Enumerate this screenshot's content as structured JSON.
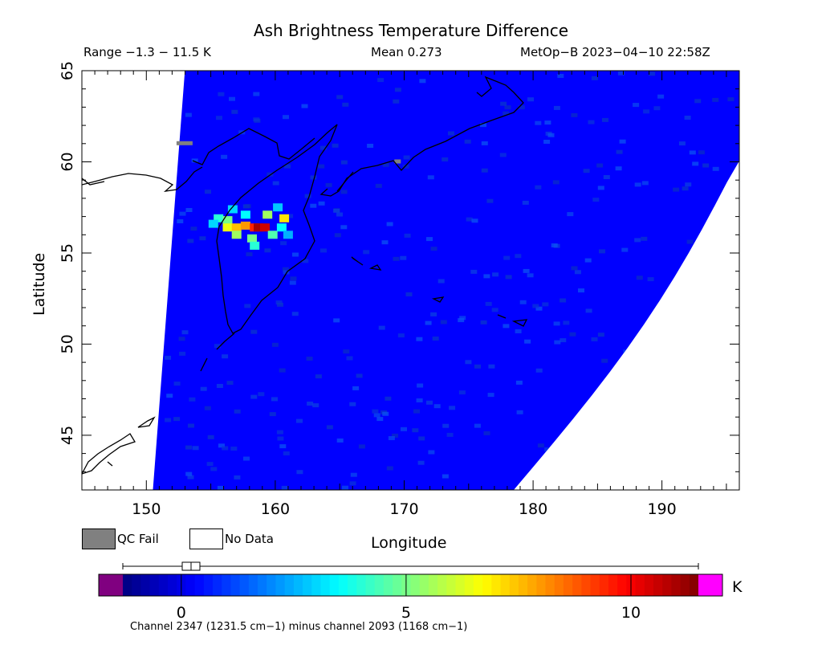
{
  "chart_data": {
    "type": "heatmap",
    "title": "Ash Brightness Temperature Difference",
    "range_text": "Range −1.3 − 11.5 K",
    "mean_text": "Mean 0.273",
    "satellite_text": "MetOp−B 2023−04−10 22:58Z",
    "xlabel": "Longitude",
    "ylabel": "Latitude",
    "xlim": [
      145,
      196
    ],
    "ylim": [
      42,
      65
    ],
    "x_ticks": [
      150,
      160,
      170,
      180,
      190
    ],
    "y_ticks": [
      45,
      50,
      55,
      60,
      65
    ],
    "colorbar": {
      "min": -1.3,
      "max": 11.5,
      "ticks": [
        0,
        5,
        10
      ],
      "unit": "K",
      "caption": "Channel 2347 (1231.5 cm−1) minus channel 2093 (1168 cm−1)",
      "under_color": "#800080",
      "over_color": "#ff00ff",
      "colors": [
        "#000080",
        "#0000ff",
        "#0080ff",
        "#00ffff",
        "#80ff80",
        "#ffff00",
        "#ff8000",
        "#ff0000",
        "#800000"
      ]
    },
    "legend": [
      {
        "label": "QC Fail",
        "color": "#808080"
      },
      {
        "label": "No Data",
        "color": "#ffffff"
      }
    ],
    "swath": {
      "background_value": 0.3,
      "west_edge": [
        [
          153,
          65
        ],
        [
          150.5,
          42
        ]
      ],
      "east_edge": [
        [
          196,
          60.2
        ],
        [
          178.5,
          42
        ]
      ]
    },
    "ash_plume": [
      {
        "lon": 155.6,
        "lat": 56.9,
        "value": 4.0
      },
      {
        "lon": 156.3,
        "lat": 56.8,
        "value": 5.0
      },
      {
        "lon": 156.3,
        "lat": 56.4,
        "value": 6.5
      },
      {
        "lon": 157.0,
        "lat": 56.4,
        "value": 7.5
      },
      {
        "lon": 157.0,
        "lat": 56.0,
        "value": 5.5
      },
      {
        "lon": 157.7,
        "lat": 56.5,
        "value": 8.0
      },
      {
        "lon": 158.4,
        "lat": 56.4,
        "value": 9.5
      },
      {
        "lon": 158.7,
        "lat": 56.4,
        "value": 11.0
      },
      {
        "lon": 159.2,
        "lat": 56.4,
        "value": 10.5
      },
      {
        "lon": 159.8,
        "lat": 56.0,
        "value": 4.5
      },
      {
        "lon": 160.5,
        "lat": 56.4,
        "value": 3.5
      },
      {
        "lon": 160.7,
        "lat": 56.9,
        "value": 7.0
      },
      {
        "lon": 159.4,
        "lat": 57.1,
        "value": 5.5
      },
      {
        "lon": 158.2,
        "lat": 55.8,
        "value": 5.0
      },
      {
        "lon": 158.4,
        "lat": 55.4,
        "value": 4.0
      },
      {
        "lon": 157.7,
        "lat": 57.1,
        "value": 3.5
      },
      {
        "lon": 156.7,
        "lat": 57.4,
        "value": 3.0
      },
      {
        "lon": 160.2,
        "lat": 57.5,
        "value": 2.8
      },
      {
        "lon": 161.0,
        "lat": 56.0,
        "value": 2.5
      },
      {
        "lon": 155.2,
        "lat": 56.6,
        "value": 3.0
      }
    ],
    "qc_fail_points": [
      {
        "lon": 152.9,
        "lat": 61.0
      },
      {
        "lon": 169.8,
        "lat": 60.0
      }
    ]
  }
}
